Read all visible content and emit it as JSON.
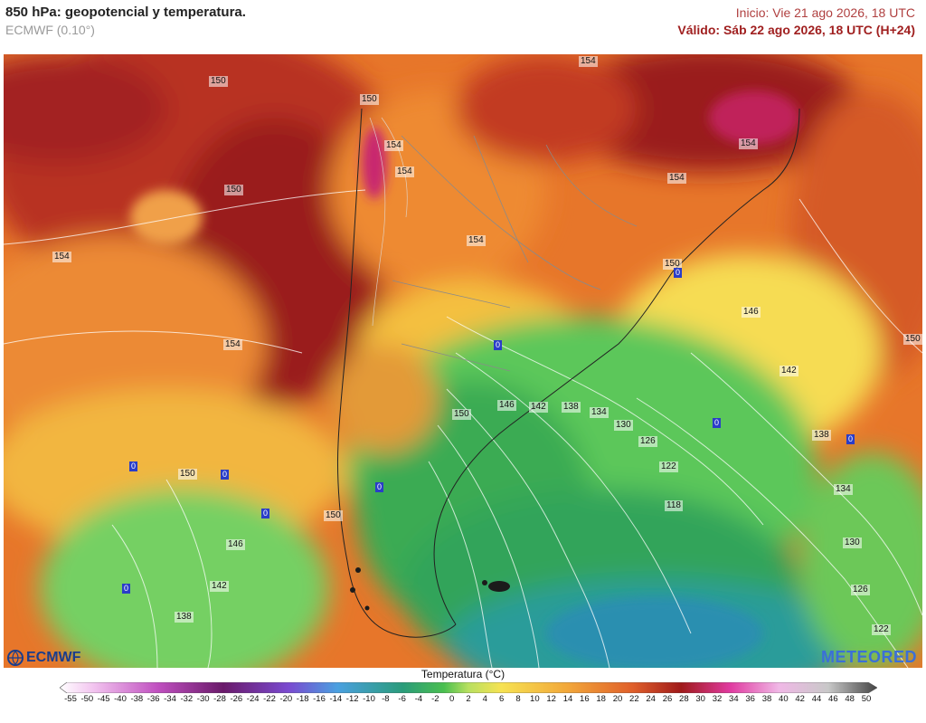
{
  "header": {
    "title": "850 hPa: geopotencial y temperatura.",
    "model": "ECMWF (0.10°)",
    "init": "Inicio: Vie 21 ago 2026, 18 UTC",
    "valid": "Válido: Sáb 22 ago 2026, 18 UTC (H+24)"
  },
  "colorbar": {
    "title": "Temperatura (°C)",
    "ticks": [
      "-55",
      "-50",
      "-45",
      "-40",
      "-38",
      "-36",
      "-34",
      "-32",
      "-30",
      "-28",
      "-26",
      "-24",
      "-22",
      "-20",
      "-18",
      "-16",
      "-14",
      "-12",
      "-10",
      "-8",
      "-6",
      "-4",
      "-2",
      "0",
      "2",
      "4",
      "6",
      "8",
      "10",
      "12",
      "14",
      "16",
      "18",
      "20",
      "22",
      "24",
      "26",
      "28",
      "30",
      "32",
      "34",
      "36",
      "38",
      "40",
      "42",
      "44",
      "46",
      "48",
      "50"
    ]
  },
  "isohypse_labels": [
    "150",
    "150",
    "154",
    "154",
    "150",
    "154",
    "154",
    "154",
    "150",
    "154",
    "154",
    "150",
    "146",
    "150",
    "142",
    "138",
    "134",
    "130",
    "126",
    "122",
    "118",
    "146",
    "142",
    "150",
    "150",
    "146",
    "142",
    "138",
    "146",
    "150",
    "138",
    "134",
    "130",
    "126",
    "122"
  ],
  "zero_labels": [
    "0",
    "0",
    "0",
    "0",
    "0",
    "0",
    "0",
    "0",
    "0",
    "0"
  ],
  "branding": {
    "left": "ECMWF",
    "right": "METEORED"
  },
  "colors": {
    "title": "#222222",
    "init": "#b04040",
    "valid": "#a02020",
    "ecmwf": "#1a3d8c",
    "meteored": "#3b6fd8"
  }
}
